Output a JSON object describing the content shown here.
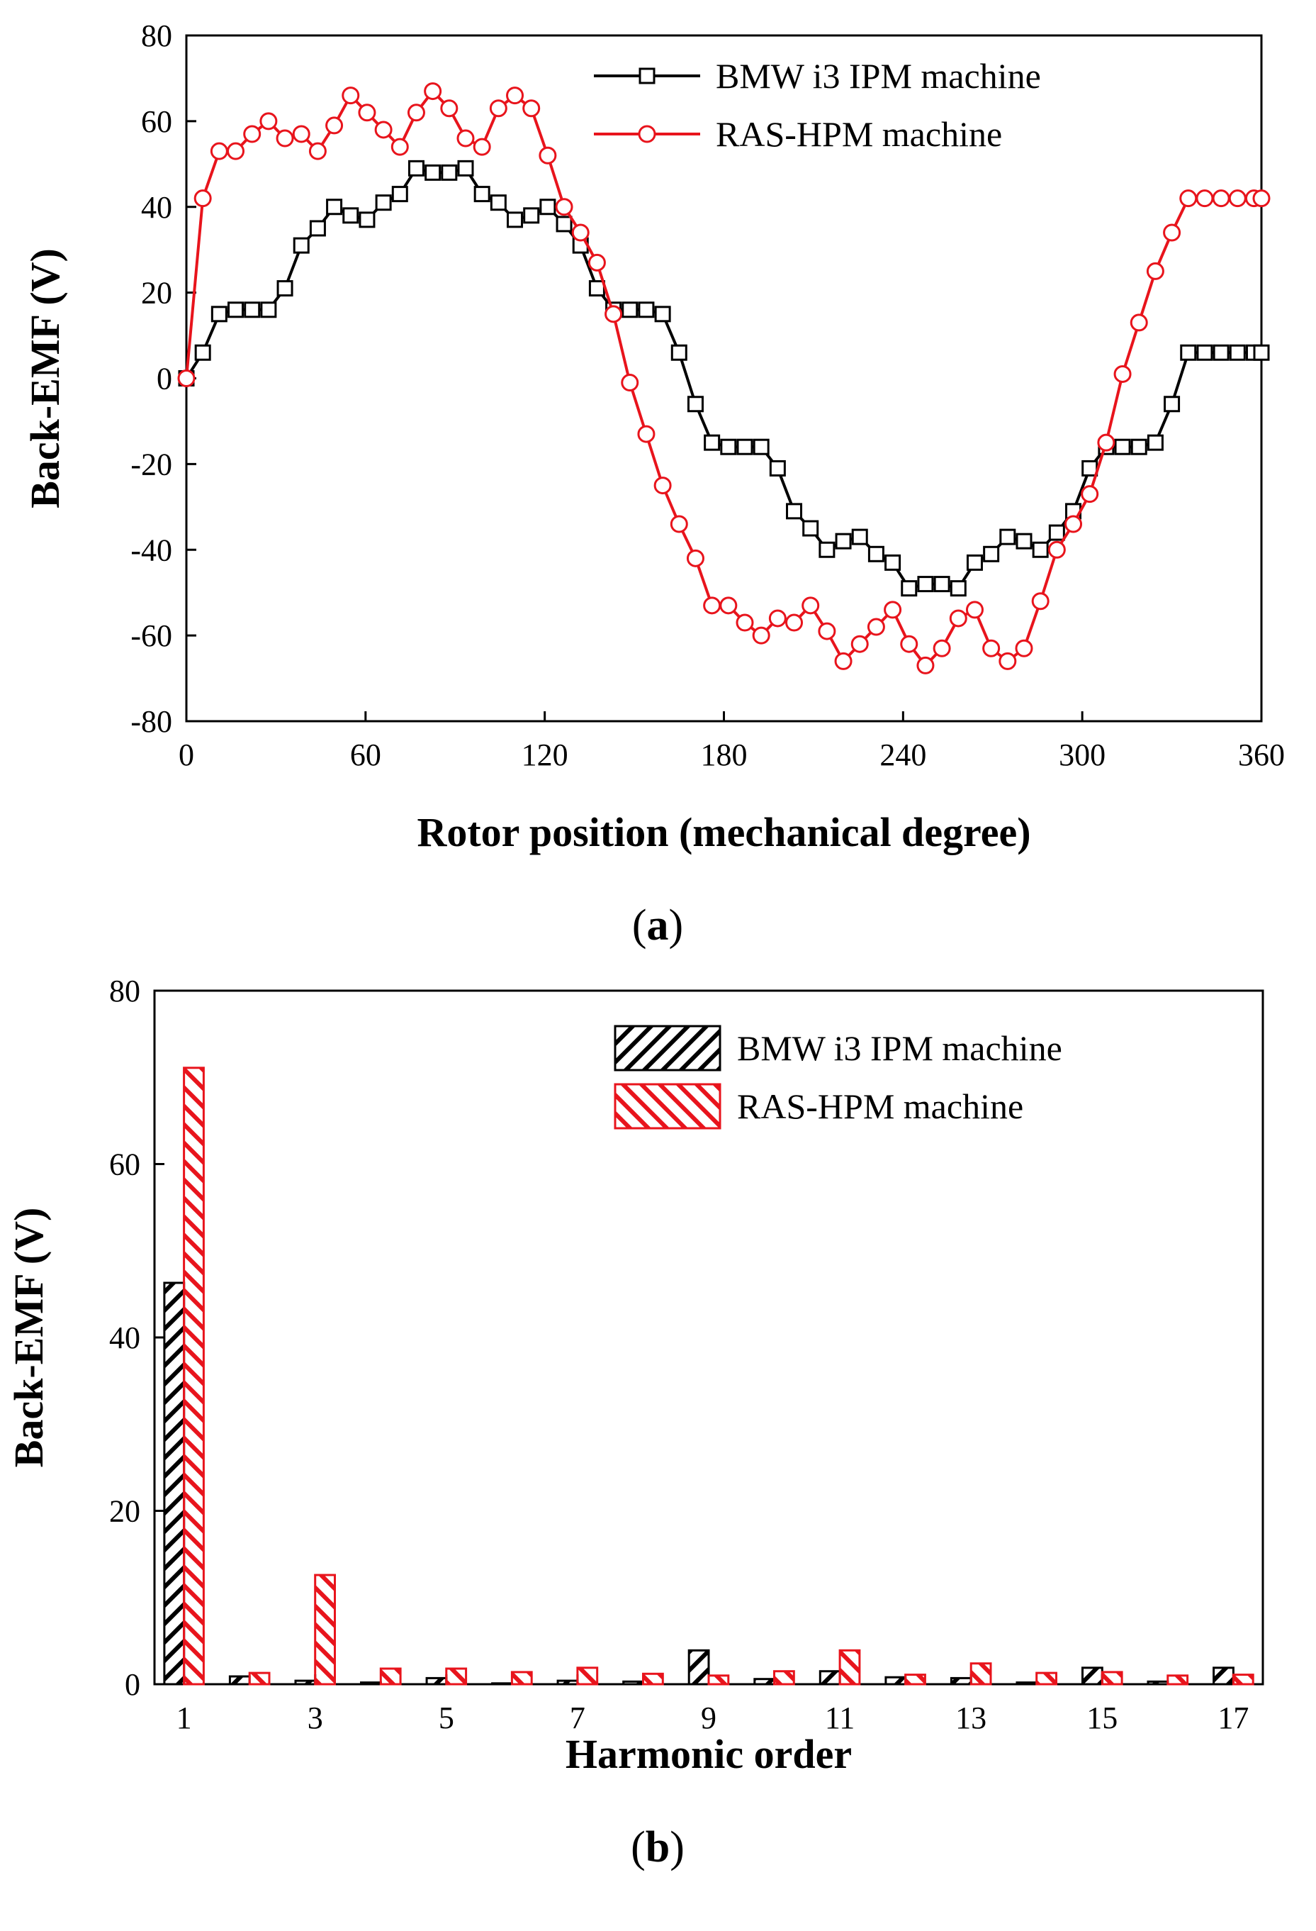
{
  "colors": {
    "bmw": "#000000",
    "ras": "#e8141c"
  },
  "chart_data": [
    {
      "type": "line",
      "panel_label": "a",
      "xlabel": "Rotor position (mechanical degree)",
      "ylabel": "Back-EMF (V)",
      "xlim": [
        0,
        360
      ],
      "ylim": [
        -80,
        80
      ],
      "xticks": [
        "0",
        "60",
        "120",
        "180",
        "240",
        "300",
        "360"
      ],
      "yticks": [
        "80",
        "60",
        "40",
        "20",
        "0",
        "-20",
        "-40",
        "-60",
        "-80"
      ],
      "legend_position": "top-right",
      "series": [
        {
          "name": "BMW i3 IPM machine",
          "marker": "square",
          "x": [
            0,
            5.5,
            11,
            16.5,
            22,
            27.5,
            33,
            38.5,
            44,
            49.5,
            55,
            60.5,
            66,
            71.5,
            77,
            82.5,
            88,
            93.5,
            99,
            104.5,
            110,
            115.5,
            121,
            126.5,
            132,
            137.5,
            143,
            148.5,
            154,
            159.5,
            165,
            170.5,
            176,
            181.5,
            187,
            192.5,
            198,
            203.5,
            209,
            214.5,
            220,
            225.5,
            231,
            236.5,
            242,
            247.5,
            253,
            258.5,
            264,
            269.5,
            275,
            280.5,
            286,
            291.5,
            297,
            302.5,
            308,
            313.5,
            319,
            324.5,
            330,
            335.5,
            341,
            346.5,
            352,
            357.5,
            360
          ],
          "y": [
            0,
            6,
            15,
            16,
            16,
            16,
            21,
            31,
            35,
            40,
            38,
            37,
            41,
            43,
            49,
            48,
            48,
            49,
            43,
            41,
            37,
            38,
            40,
            36,
            31,
            21,
            16,
            16,
            16,
            15,
            6,
            -6,
            -15,
            -16,
            -16,
            -16,
            -21,
            -31,
            -35,
            -40,
            -38,
            -37,
            -41,
            -43,
            -49,
            -48,
            -48,
            -49,
            -43,
            -41,
            -37,
            -38,
            -40,
            -36,
            -31,
            -21,
            -16,
            -16,
            -16,
            -15,
            -6,
            6,
            6,
            6,
            6,
            6,
            6
          ]
        },
        {
          "name": "RAS-HPM machine",
          "marker": "circle",
          "x": [
            0,
            5.5,
            11,
            16.5,
            22,
            27.5,
            33,
            38.5,
            44,
            49.5,
            55,
            60.5,
            66,
            71.5,
            77,
            82.5,
            88,
            93.5,
            99,
            104.5,
            110,
            115.5,
            121,
            126.5,
            132,
            137.5,
            143,
            148.5,
            154,
            159.5,
            165,
            170.5,
            176,
            181.5,
            187,
            192.5,
            198,
            203.5,
            209,
            214.5,
            220,
            225.5,
            231,
            236.5,
            242,
            247.5,
            253,
            258.5,
            264,
            269.5,
            275,
            280.5,
            286,
            291.5,
            297,
            302.5,
            308,
            313.5,
            319,
            324.5,
            330,
            335.5,
            341,
            346.5,
            352,
            357.5,
            360
          ],
          "y": [
            0,
            42,
            53,
            53,
            57,
            60,
            56,
            57,
            53,
            59,
            66,
            62,
            58,
            54,
            62,
            67,
            63,
            56,
            54,
            63,
            66,
            63,
            52,
            40,
            34,
            27,
            15,
            -1,
            -13,
            -25,
            -34,
            -42,
            -53,
            -53,
            -57,
            -60,
            -56,
            -57,
            -53,
            -59,
            -66,
            -62,
            -58,
            -54,
            -62,
            -67,
            -63,
            -56,
            -54,
            -63,
            -66,
            -63,
            -52,
            -40,
            -34,
            -27,
            -15,
            1,
            13,
            25,
            34,
            42,
            42,
            42,
            42,
            42,
            42
          ]
        }
      ]
    },
    {
      "type": "bar",
      "panel_label": "b",
      "xlabel": "Harmonic order",
      "ylabel": "Back-EMF (V)",
      "ylim": [
        0,
        80
      ],
      "categories": [
        1,
        2,
        3,
        4,
        5,
        6,
        7,
        8,
        9,
        10,
        11,
        12,
        13,
        14,
        15,
        16,
        17
      ],
      "xticks": [
        "1",
        "3",
        "5",
        "7",
        "9",
        "11",
        "13",
        "15",
        "17"
      ],
      "yticks": [
        "80",
        "60",
        "40",
        "20",
        "0"
      ],
      "legend_position": "top-right",
      "series": [
        {
          "name": "BMW i3 IPM machine",
          "pattern": "hatch-forward",
          "values": [
            46.3,
            0.9,
            0.4,
            0.2,
            0.7,
            0.1,
            0.4,
            0.3,
            3.9,
            0.6,
            1.5,
            0.8,
            0.7,
            0.2,
            1.9,
            0.3,
            1.9
          ]
        },
        {
          "name": "RAS-HPM machine",
          "pattern": "hatch-back",
          "values": [
            71.1,
            1.3,
            12.6,
            1.8,
            1.8,
            1.4,
            1.9,
            1.2,
            1.0,
            1.5,
            3.9,
            1.1,
            2.4,
            1.3,
            1.4,
            1.0,
            1.1
          ]
        }
      ]
    }
  ]
}
